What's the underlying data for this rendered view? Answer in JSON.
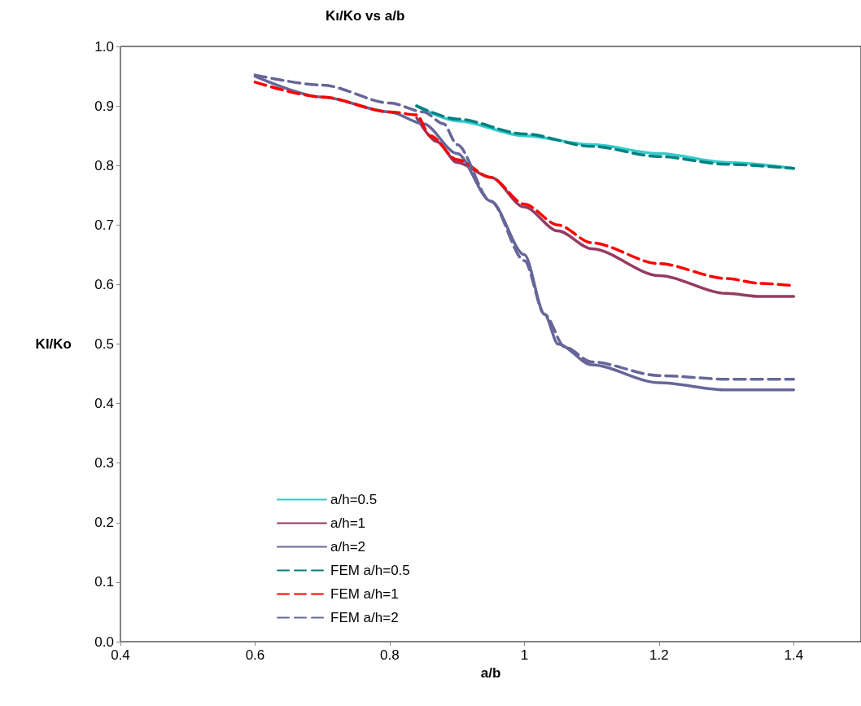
{
  "chart_data": {
    "type": "line",
    "title": "Kı/Ko vs a/b",
    "xlabel": "a/b",
    "ylabel": "Kl/Ko",
    "xlim": [
      0.4,
      1.5
    ],
    "xticks": [
      0.4,
      0.6,
      0.8,
      1,
      1.2,
      1.4
    ],
    "ylim": [
      0,
      1
    ],
    "yticks": [
      {
        "value": 0,
        "label": "0.0"
      },
      0.1,
      0.2,
      0.3,
      0.4,
      0.5,
      0.6,
      0.7,
      0.8,
      0.9,
      {
        "value": 1,
        "label": "1.0"
      }
    ],
    "grid": false,
    "legend": "bottom left",
    "marker": "none",
    "series": [
      {
        "name": "a/h=0.5",
        "color": "#33cccc",
        "line_style": "solid",
        "x": [
          0.84,
          0.9,
          1.0,
          1.1,
          1.2,
          1.3,
          1.4
        ],
        "values": [
          0.9,
          0.875,
          0.85,
          0.835,
          0.82,
          0.805,
          0.795
        ]
      },
      {
        "name": "a/h=1",
        "color": "#953b63",
        "line_style": "solid",
        "x": [
          0.84,
          0.87,
          0.9,
          0.95,
          1.0,
          1.05,
          1.1,
          1.2,
          1.3,
          1.35,
          1.4
        ],
        "values": [
          0.88,
          0.84,
          0.805,
          0.78,
          0.73,
          0.69,
          0.66,
          0.615,
          0.585,
          0.58,
          0.58
        ]
      },
      {
        "name": "a/h=2",
        "color": "#666699",
        "line_style": "solid",
        "x": [
          0.6,
          0.7,
          0.8,
          0.85,
          0.9,
          0.95,
          1.0,
          1.03,
          1.05,
          1.1,
          1.2,
          1.3,
          1.4
        ],
        "values": [
          0.95,
          0.915,
          0.89,
          0.87,
          0.82,
          0.74,
          0.65,
          0.55,
          0.5,
          0.465,
          0.435,
          0.423,
          0.423
        ]
      },
      {
        "name": "FEM a/h=0.5",
        "color": "#008080",
        "line_style": "dashed",
        "x": [
          0.84,
          0.9,
          1.0,
          1.1,
          1.2,
          1.3,
          1.4
        ],
        "values": [
          0.9,
          0.878,
          0.853,
          0.832,
          0.815,
          0.802,
          0.795
        ]
      },
      {
        "name": "FEM a/h=1",
        "color": "#ff0000",
        "line_style": "dashed",
        "x": [
          0.6,
          0.7,
          0.8,
          0.84,
          0.86,
          0.9,
          0.95,
          1.0,
          1.05,
          1.1,
          1.2,
          1.3,
          1.35,
          1.4
        ],
        "values": [
          0.94,
          0.915,
          0.89,
          0.885,
          0.85,
          0.81,
          0.78,
          0.735,
          0.7,
          0.67,
          0.635,
          0.61,
          0.602,
          0.598
        ]
      },
      {
        "name": "FEM a/h=2",
        "color": "#666699",
        "line_style": "dashed",
        "x": [
          0.6,
          0.7,
          0.8,
          0.85,
          0.88,
          0.9,
          0.95,
          1.0,
          1.03,
          1.06,
          1.1,
          1.2,
          1.3,
          1.4
        ],
        "values": [
          0.952,
          0.935,
          0.905,
          0.89,
          0.87,
          0.835,
          0.74,
          0.64,
          0.55,
          0.495,
          0.47,
          0.447,
          0.441,
          0.441
        ]
      }
    ]
  }
}
